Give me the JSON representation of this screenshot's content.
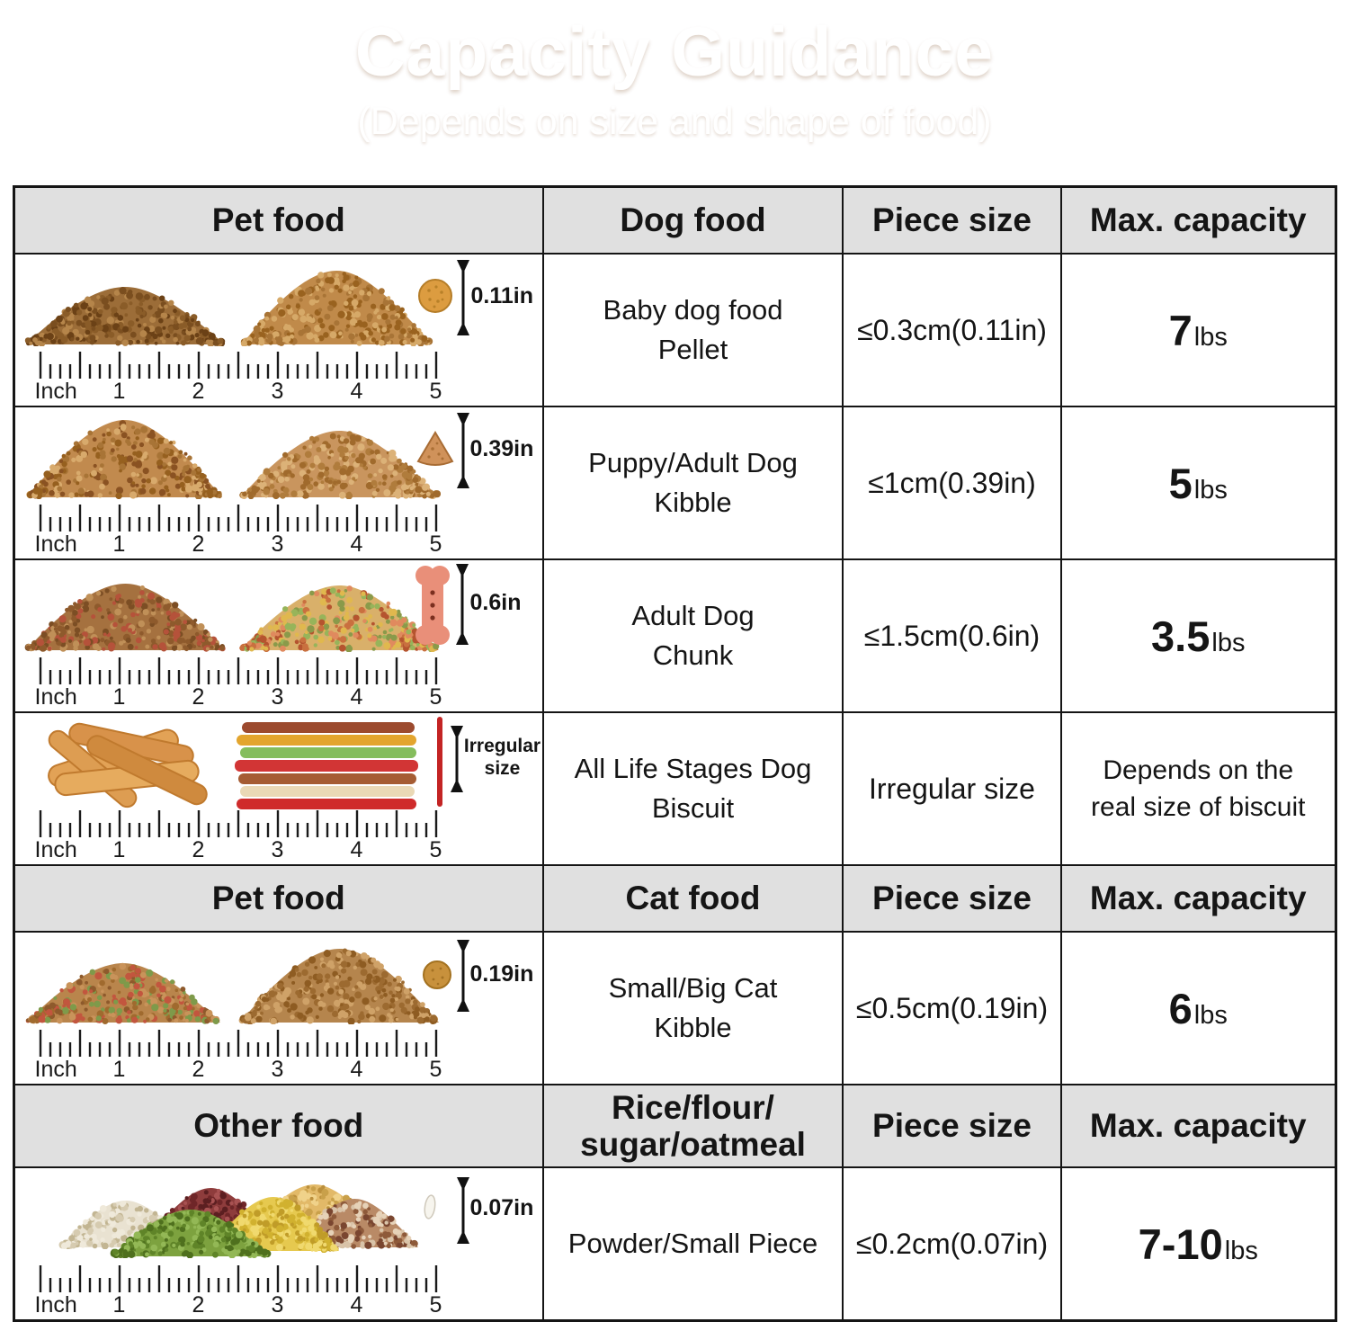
{
  "banner": {
    "title": "Capacity Guidance",
    "subtitle": "(Depends on size and shape of food)"
  },
  "colors": {
    "banner_orange": "#dd7b36",
    "header_bg": "#e0e0e0",
    "border": "#151515",
    "bone_pink": "#e98f79",
    "stick_red": "#c32424"
  },
  "ruler": {
    "unit_label": "Inch",
    "marks": [
      "1",
      "2",
      "3",
      "4",
      "5"
    ]
  },
  "table": {
    "sections": [
      {
        "header": {
          "col1": "Pet food",
          "col2": "Dog food",
          "col3": "Piece size",
          "col4": "Max. capacity"
        },
        "rows": [
          {
            "name_line1": "Baby dog food",
            "name_line2": "Pellet",
            "piece_size": "≤0.3cm(0.11in)",
            "capacity_value": "7",
            "capacity_unit": "lbs",
            "measure_label": "0.11in"
          },
          {
            "name_line1": "Puppy/Adult Dog",
            "name_line2": "Kibble",
            "piece_size": "≤1cm(0.39in)",
            "capacity_value": "5",
            "capacity_unit": "lbs",
            "measure_label": "0.39in"
          },
          {
            "name_line1": "Adult Dog",
            "name_line2": "Chunk",
            "piece_size": "≤1.5cm(0.6in)",
            "capacity_value": "3.5",
            "capacity_unit": "lbs",
            "measure_label": "0.6in"
          },
          {
            "name_line1": "All Life Stages Dog",
            "name_line2": "Biscuit",
            "piece_size": "Irregular size",
            "capacity_line1": "Depends on the",
            "capacity_line2": "real size of biscuit",
            "measure_label_line1": "Irregular",
            "measure_label_line2": "size"
          }
        ]
      },
      {
        "header": {
          "col1": "Pet food",
          "col2": "Cat food",
          "col3": "Piece size",
          "col4": "Max. capacity"
        },
        "rows": [
          {
            "name_line1": "Small/Big Cat",
            "name_line2": "Kibble",
            "piece_size": "≤0.5cm(0.19in)",
            "capacity_value": "6",
            "capacity_unit": "lbs",
            "measure_label": "0.19in"
          }
        ]
      },
      {
        "header": {
          "col1": "Other food",
          "col2_line1": "Rice/flour/",
          "col2_line2": "sugar/oatmeal",
          "col3": "Piece size",
          "col4": "Max. capacity"
        },
        "rows": [
          {
            "name_line1": "Powder/Small Piece",
            "piece_size": "≤0.2cm(0.07in)",
            "capacity_value": "7-10",
            "capacity_unit": "lbs",
            "measure_label": "0.07in"
          }
        ]
      }
    ]
  }
}
